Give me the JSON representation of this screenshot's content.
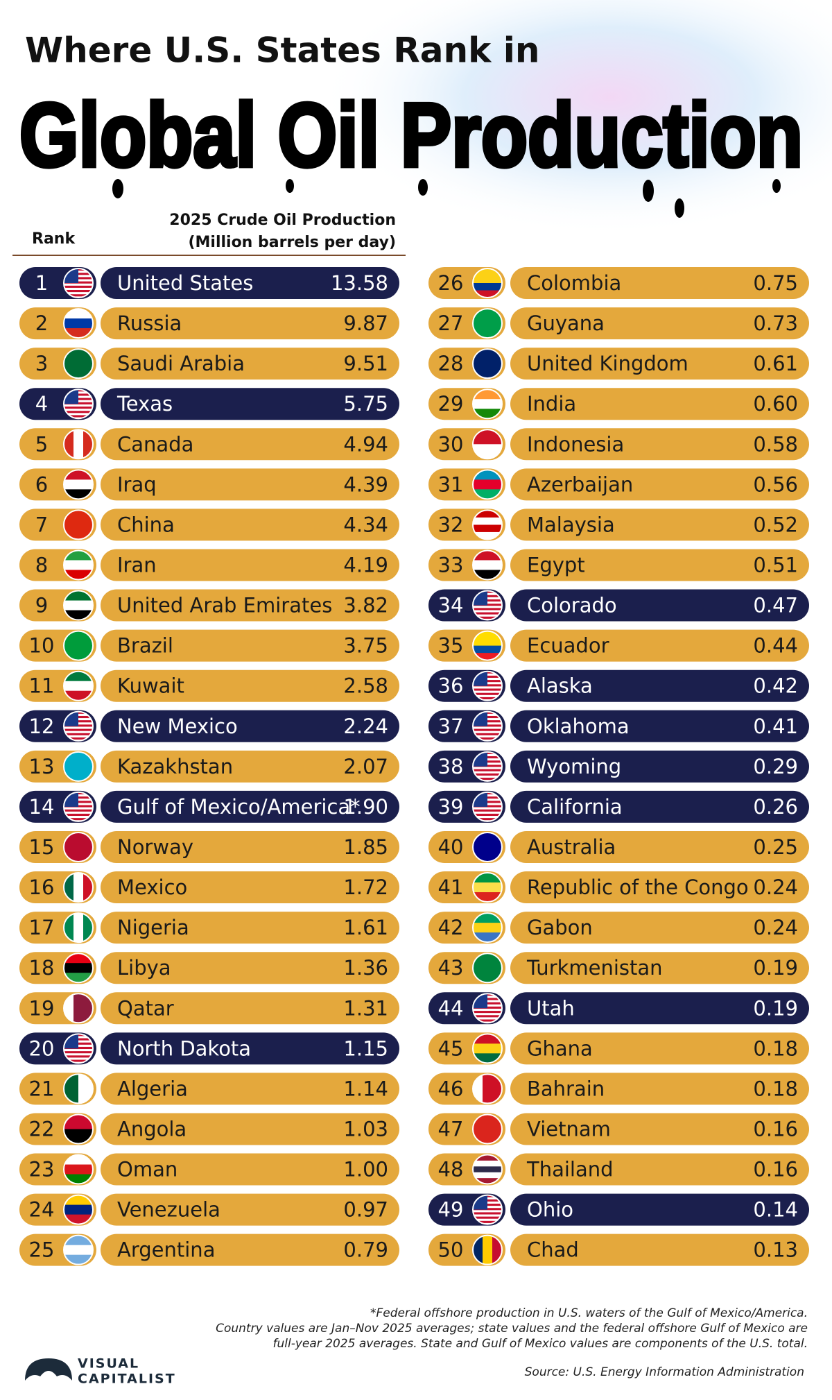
{
  "header": {
    "title_line1": "Where U.S. States Rank in",
    "title_line2": "Global Oil Production"
  },
  "table": {
    "rank_label": "Rank",
    "value_label_line1": "2025 Crude Oil Production",
    "value_label_line2": "(Million barrels per day)",
    "rows": [
      {
        "rank": 1,
        "name": "United States",
        "value": "13.58",
        "highlight": true
      },
      {
        "rank": 2,
        "name": "Russia",
        "value": "9.87"
      },
      {
        "rank": 3,
        "name": "Saudi Arabia",
        "value": "9.51"
      },
      {
        "rank": 4,
        "name": "Texas",
        "value": "5.75",
        "highlight": true
      },
      {
        "rank": 5,
        "name": "Canada",
        "value": "4.94"
      },
      {
        "rank": 6,
        "name": "Iraq",
        "value": "4.39"
      },
      {
        "rank": 7,
        "name": "China",
        "value": "4.34"
      },
      {
        "rank": 8,
        "name": "Iran",
        "value": "4.19"
      },
      {
        "rank": 9,
        "name": "United Arab Emirates",
        "value": "3.82"
      },
      {
        "rank": 10,
        "name": "Brazil",
        "value": "3.75"
      },
      {
        "rank": 11,
        "name": "Kuwait",
        "value": "2.58"
      },
      {
        "rank": 12,
        "name": "New Mexico",
        "value": "2.24",
        "highlight": true
      },
      {
        "rank": 13,
        "name": "Kazakhstan",
        "value": "2.07"
      },
      {
        "rank": 14,
        "name": "Gulf of Mexico/America*",
        "value": "1.90",
        "highlight": true
      },
      {
        "rank": 15,
        "name": "Norway",
        "value": "1.85"
      },
      {
        "rank": 16,
        "name": "Mexico",
        "value": "1.72"
      },
      {
        "rank": 17,
        "name": "Nigeria",
        "value": "1.61"
      },
      {
        "rank": 18,
        "name": "Libya",
        "value": "1.36"
      },
      {
        "rank": 19,
        "name": "Qatar",
        "value": "1.31"
      },
      {
        "rank": 20,
        "name": "North Dakota",
        "value": "1.15",
        "highlight": true
      },
      {
        "rank": 21,
        "name": "Algeria",
        "value": "1.14"
      },
      {
        "rank": 22,
        "name": "Angola",
        "value": "1.03"
      },
      {
        "rank": 23,
        "name": "Oman",
        "value": "1.00"
      },
      {
        "rank": 24,
        "name": "Venezuela",
        "value": "0.97"
      },
      {
        "rank": 25,
        "name": "Argentina",
        "value": "0.79"
      },
      {
        "rank": 26,
        "name": "Colombia",
        "value": "0.75"
      },
      {
        "rank": 27,
        "name": "Guyana",
        "value": "0.73"
      },
      {
        "rank": 28,
        "name": "United Kingdom",
        "value": "0.61"
      },
      {
        "rank": 29,
        "name": "India",
        "value": "0.60"
      },
      {
        "rank": 30,
        "name": "Indonesia",
        "value": "0.58"
      },
      {
        "rank": 31,
        "name": "Azerbaijan",
        "value": "0.56"
      },
      {
        "rank": 32,
        "name": "Malaysia",
        "value": "0.52"
      },
      {
        "rank": 33,
        "name": "Egypt",
        "value": "0.51"
      },
      {
        "rank": 34,
        "name": "Colorado",
        "value": "0.47",
        "highlight": true
      },
      {
        "rank": 35,
        "name": "Ecuador",
        "value": "0.44"
      },
      {
        "rank": 36,
        "name": "Alaska",
        "value": "0.42",
        "highlight": true
      },
      {
        "rank": 37,
        "name": "Oklahoma",
        "value": "0.41",
        "highlight": true
      },
      {
        "rank": 38,
        "name": "Wyoming",
        "value": "0.29",
        "highlight": true
      },
      {
        "rank": 39,
        "name": "California",
        "value": "0.26",
        "highlight": true
      },
      {
        "rank": 40,
        "name": "Australia",
        "value": "0.25"
      },
      {
        "rank": 41,
        "name": "Republic of the Congo",
        "value": "0.24"
      },
      {
        "rank": 42,
        "name": "Gabon",
        "value": "0.24"
      },
      {
        "rank": 43,
        "name": "Turkmenistan",
        "value": "0.19"
      },
      {
        "rank": 44,
        "name": "Utah",
        "value": "0.19",
        "highlight": true
      },
      {
        "rank": 45,
        "name": "Ghana",
        "value": "0.18"
      },
      {
        "rank": 46,
        "name": "Bahrain",
        "value": "0.18"
      },
      {
        "rank": 47,
        "name": "Vietnam",
        "value": "0.16"
      },
      {
        "rank": 48,
        "name": "Thailand",
        "value": "0.16"
      },
      {
        "rank": 49,
        "name": "Ohio",
        "value": "0.14",
        "highlight": true
      },
      {
        "rank": 50,
        "name": "Chad",
        "value": "0.13"
      }
    ]
  },
  "footer": {
    "note_line1": "*Federal offshore production in U.S. waters of the Gulf of Mexico/America.",
    "note_line2": "Country values are Jan–Nov 2025 averages; state values and the federal offshore Gulf of Mexico are",
    "note_line3": "full-year 2025 averages. State and Gulf of Mexico values are components of the U.S. total.",
    "source": "Source: U.S. Energy Information Administration",
    "logo_line1": "VISUAL",
    "logo_line2": "CAPITALIST"
  }
}
